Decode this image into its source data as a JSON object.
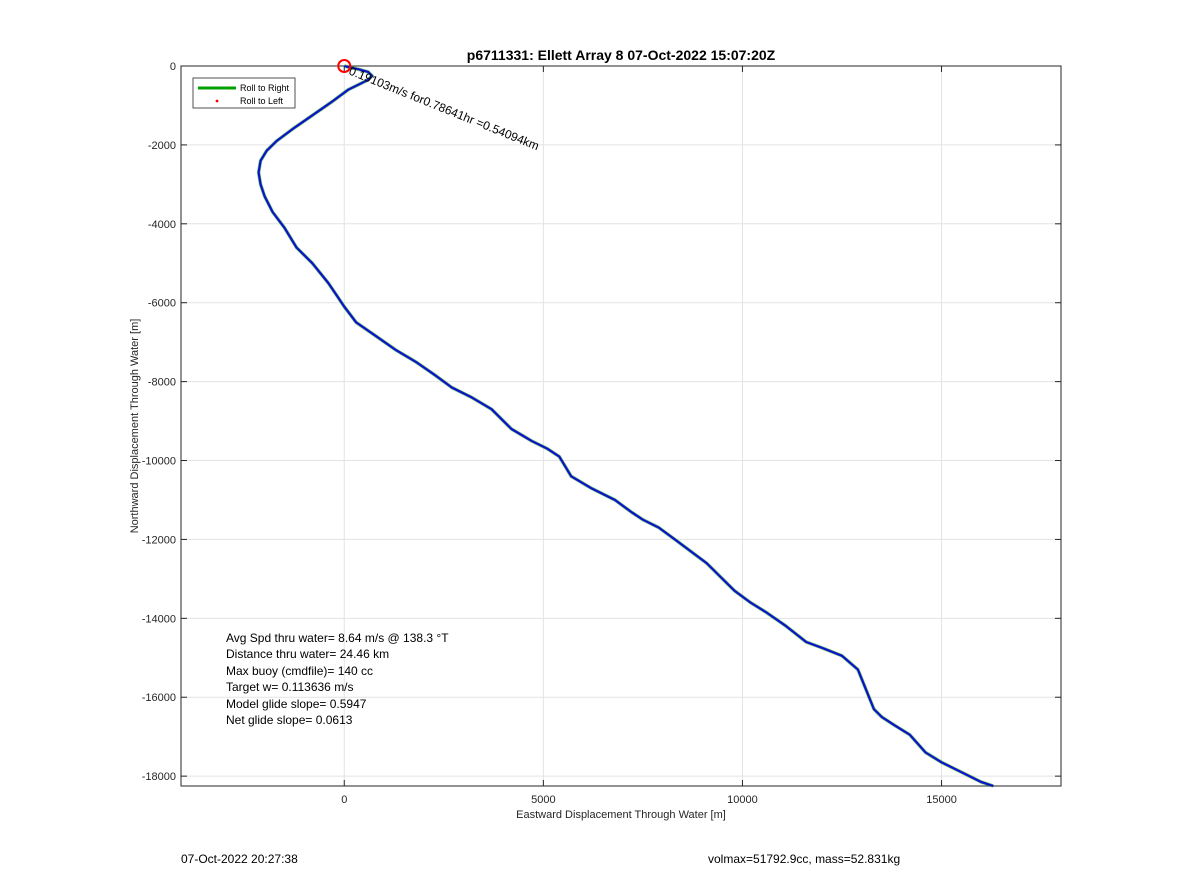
{
  "chart_data": {
    "type": "line",
    "title": "p6711331: Ellett Array 8 07-Oct-2022 15:07:20Z",
    "xlabel": "Eastward Displacement Through Water [m]",
    "ylabel": "Northward Displacement Through Water [m]",
    "xlim": [
      -4100,
      18000
    ],
    "ylim": [
      -18250,
      0
    ],
    "xticks": [
      0,
      5000,
      10000,
      15000
    ],
    "yticks": [
      0,
      -2000,
      -4000,
      -6000,
      -8000,
      -10000,
      -12000,
      -14000,
      -16000,
      -18000
    ],
    "grid": true,
    "legend": {
      "placement": "top-left",
      "entries": [
        {
          "label": "Roll to Right",
          "color": "#00a000",
          "style": "line"
        },
        {
          "label": "Roll to Left",
          "color": "#ff0000",
          "style": "dot"
        }
      ]
    },
    "series": [
      {
        "color": "#1010cc",
        "x": [
          0,
          150,
          350,
          600,
          700,
          600,
          400,
          100,
          -300,
          -800,
          -1300,
          -1700,
          -1950,
          -2100,
          -2150,
          -2100,
          -2000,
          -1800,
          -1500,
          -1200,
          -800,
          -400,
          -200,
          0,
          300,
          800,
          1300,
          1800,
          2300,
          2700,
          3200,
          3700,
          4200,
          4700,
          5100,
          5400,
          5700,
          6200,
          6800,
          7200,
          7500,
          7900,
          8300,
          8700,
          9100,
          9500,
          9800,
          10200,
          10600,
          11100,
          11600,
          12000,
          12500,
          12900,
          13100,
          13300,
          13500,
          13800,
          14200,
          14600,
          15000,
          15500,
          16000,
          16300
        ],
        "y": [
          0,
          -40,
          -80,
          -150,
          -250,
          -350,
          -450,
          -600,
          -900,
          -1250,
          -1600,
          -1900,
          -2150,
          -2400,
          -2700,
          -3000,
          -3300,
          -3700,
          -4100,
          -4600,
          -5000,
          -5500,
          -5800,
          -6100,
          -6500,
          -6850,
          -7200,
          -7500,
          -7850,
          -8150,
          -8400,
          -8700,
          -9200,
          -9500,
          -9700,
          -9900,
          -10400,
          -10700,
          -11000,
          -11300,
          -11500,
          -11700,
          -12000,
          -12300,
          -12600,
          -13000,
          -13300,
          -13600,
          -13850,
          -14200,
          -14600,
          -14750,
          -14950,
          -15300,
          -15800,
          -16300,
          -16500,
          -16700,
          -16950,
          -17400,
          -17650,
          -17900,
          -18150,
          -18250
        ]
      }
    ],
    "annotations": {
      "start_marker": {
        "x": 0,
        "y": 0,
        "color": "#ff0000"
      },
      "label": "0.19103m/s for0.78641hr =0.54094km",
      "stats": [
        "Avg Spd thru water=  8.64 m/s @ 138.3 °T",
        "Distance thru water= 24.46 km",
        "Max buoy (cmdfile)= 140 cc",
        "Target w= 0.113636 m/s",
        "Model glide slope= 0.5947",
        "Net glide slope= 0.0613"
      ]
    }
  },
  "footer": {
    "left": "07-Oct-2022 20:27:38",
    "right": "volmax=51792.9cc, mass=52.831kg"
  }
}
